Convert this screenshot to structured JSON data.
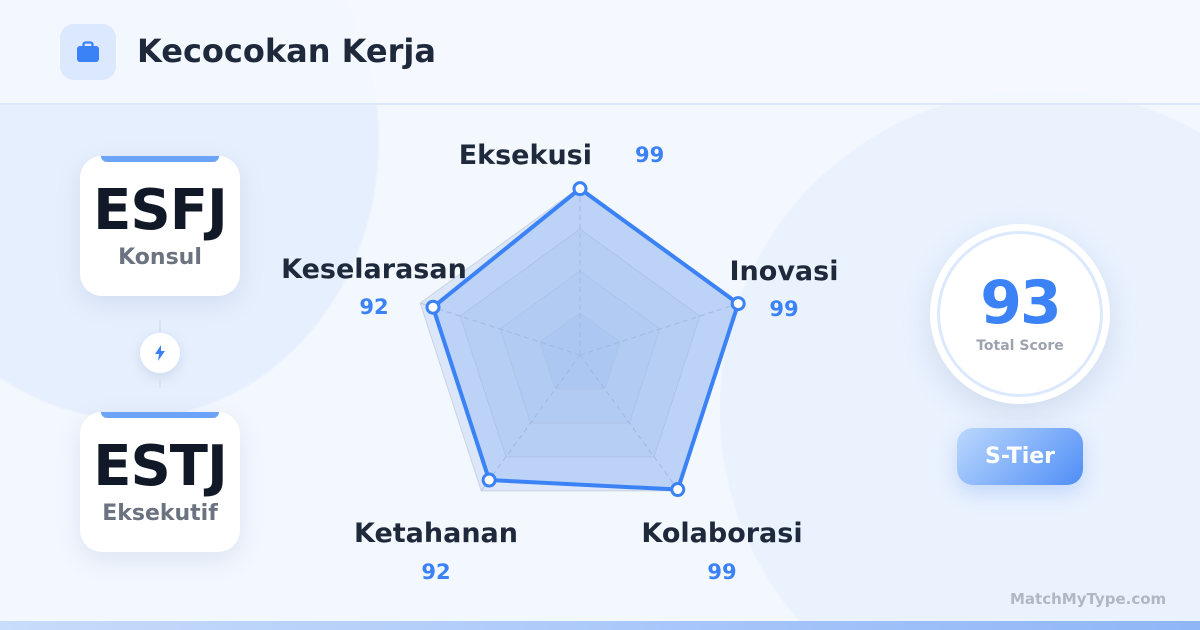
{
  "header": {
    "title": "Kecocokan Kerja",
    "icon": "briefcase-icon"
  },
  "types": [
    {
      "code": "ESFJ",
      "name": "Konsul"
    },
    {
      "code": "ESTJ",
      "name": "Eksekutif"
    }
  ],
  "link_icon": "lightning-icon",
  "score": {
    "value": "93",
    "label": "Total Score",
    "tier": "S-Tier"
  },
  "brand": "MatchMyType.com",
  "colors": {
    "accent": "#3b82f6",
    "text": "#1e293b"
  },
  "chart_data": {
    "type": "radar",
    "categories": [
      "Eksekusi",
      "Inovasi",
      "Kolaborasi",
      "Ketahanan",
      "Keselarasan"
    ],
    "values": [
      99,
      99,
      99,
      92,
      92
    ],
    "value_labels": [
      "99",
      "99",
      "99",
      "92",
      "92"
    ],
    "rlim": [
      0,
      100
    ],
    "grid": true
  }
}
